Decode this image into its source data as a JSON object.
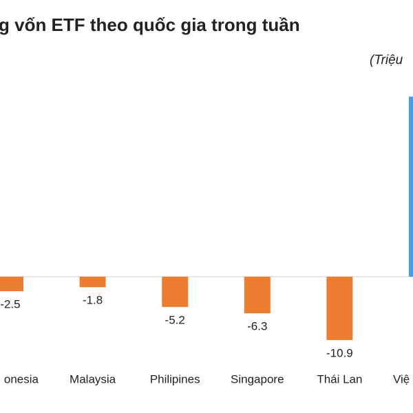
{
  "chart_data": {
    "type": "bar",
    "title": "g vốn ETF theo quốc gia trong tuần",
    "unit_label": "(Triệu",
    "categories": [
      "onesia",
      "Malaysia",
      "Philipines",
      "Singapore",
      "Thái Lan",
      "Việ"
    ],
    "values": [
      -2.5,
      -1.8,
      -5.2,
      -6.3,
      -10.9,
      31
    ],
    "colors": [
      "#ed7d31",
      "#ed7d31",
      "#ed7d31",
      "#ed7d31",
      "#ed7d31",
      "#4a9be0"
    ],
    "ylim": [
      -15,
      35
    ]
  }
}
